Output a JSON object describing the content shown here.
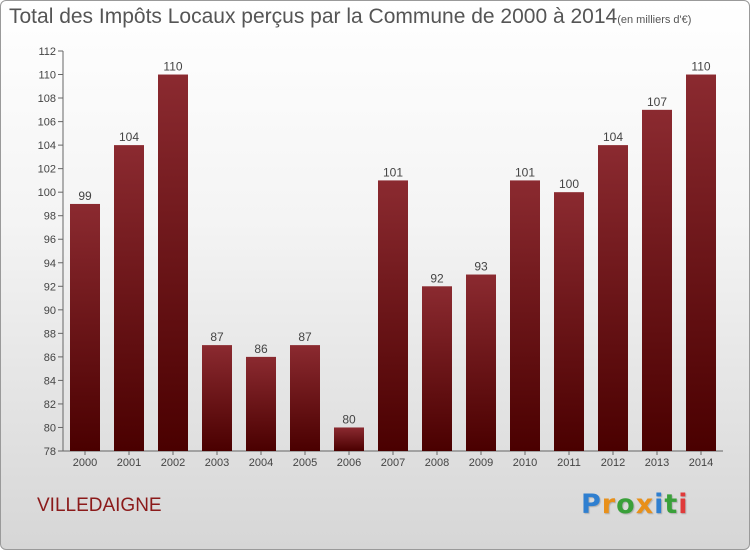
{
  "header": {
    "title": "Total des Impôts Locaux perçus par la Commune de 2000 à 2014",
    "unit": "(en milliers d'€)"
  },
  "footer": {
    "commune": "VILLEDAIGNE",
    "logo_letters": [
      "P",
      "r",
      "o",
      "x",
      "i",
      "t",
      "i"
    ],
    "logo_colors": [
      "#2f7fd0",
      "#e8901a",
      "#3aa03a",
      "#e8901a",
      "#2f7fd0",
      "#3aa03a",
      "#e03a3a"
    ]
  },
  "chart_data": {
    "type": "bar",
    "title": "Total des Impôts Locaux perçus par la Commune de 2000 à 2014",
    "xlabel": "",
    "ylabel": "",
    "categories": [
      "2000",
      "2001",
      "2002",
      "2003",
      "2004",
      "2005",
      "2006",
      "2007",
      "2008",
      "2009",
      "2010",
      "2011",
      "2012",
      "2013",
      "2014"
    ],
    "values": [
      99,
      104,
      110,
      87,
      86,
      87,
      80,
      101,
      92,
      93,
      101,
      100,
      104,
      107,
      110
    ],
    "ylim": [
      78,
      112
    ],
    "yticks": [
      78,
      80,
      82,
      84,
      86,
      88,
      90,
      92,
      94,
      96,
      98,
      100,
      102,
      104,
      106,
      108,
      110,
      112
    ],
    "grid": false,
    "bar_color_top": "#8b2a30",
    "bar_color_bottom": "#4a0000"
  }
}
